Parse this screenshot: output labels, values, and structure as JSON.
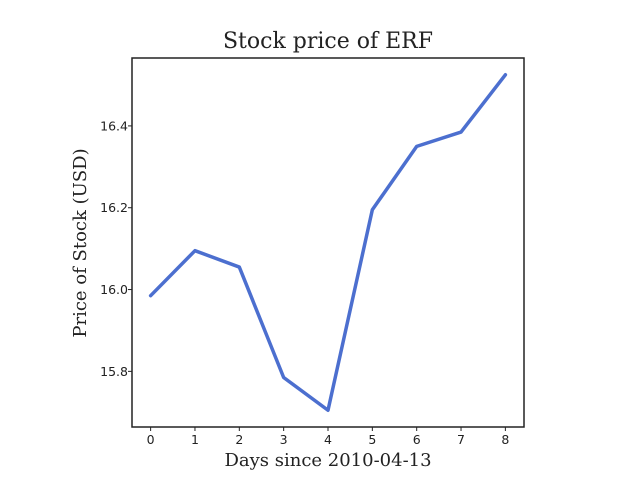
{
  "chart_data": {
    "type": "line",
    "title": "Stock price of ERF",
    "xlabel": "Days since 2010-04-13",
    "ylabel": "Price of Stock (USD)",
    "x": [
      0,
      1,
      2,
      3,
      4,
      5,
      6,
      7,
      8
    ],
    "series": [
      {
        "values": [
          15.985,
          16.095,
          16.055,
          15.785,
          15.705,
          16.195,
          16.35,
          16.385,
          16.525
        ]
      }
    ],
    "xticks": [
      "0",
      "1",
      "2",
      "3",
      "4",
      "5",
      "6",
      "7",
      "8"
    ],
    "yticks": [
      "15.8",
      "16.0",
      "16.2",
      "16.4"
    ],
    "xlim": [
      -0.42,
      8.42
    ],
    "ylim": [
      15.664,
      16.566
    ],
    "grid": false,
    "line_color": "#4c6fcf"
  }
}
